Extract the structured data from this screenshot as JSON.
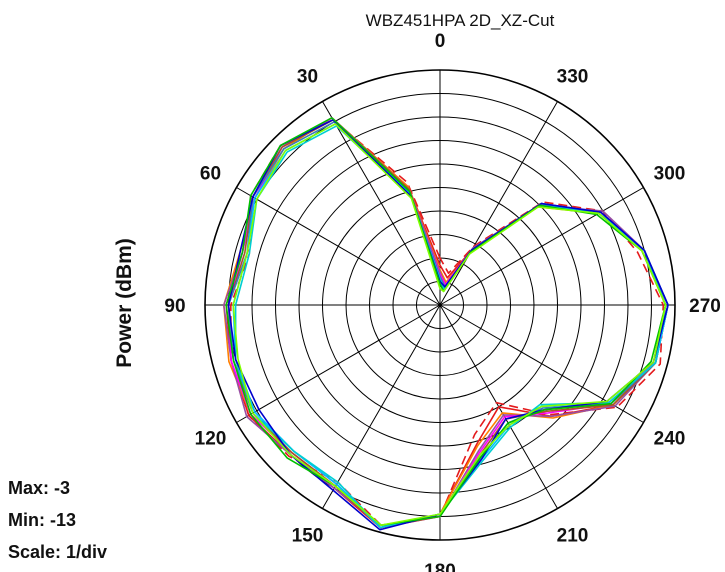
{
  "chart_data": {
    "type": "polar-line",
    "title": "WBZ451HPA 2D_XZ-Cut",
    "ylabel": "Power  (dBm)",
    "angle_direction": "counterclockwise",
    "zero_position": "top",
    "rlim": [
      -13,
      -3
    ],
    "r_ticks": [
      -13,
      -12,
      -11,
      -10,
      -9,
      -8,
      -7,
      -6,
      -5,
      -4,
      -3
    ],
    "angular_grid_step": 30,
    "angle_tick_labels": [
      "0",
      "30",
      "60",
      "90",
      "120",
      "150",
      "180",
      "210",
      "240",
      "270",
      "300",
      "330"
    ],
    "grid": true,
    "theta": [
      0,
      15,
      30,
      45,
      60,
      75,
      90,
      105,
      120,
      135,
      150,
      165,
      180,
      195,
      210,
      225,
      240,
      255,
      270,
      285,
      300,
      315,
      330,
      345
    ],
    "series": [
      {
        "color": "#e41a1c",
        "dashed": false,
        "values": [
          -11.3,
          -7.8,
          -3.9,
          -3.5,
          -3.8,
          -4.3,
          -3.9,
          -3.8,
          -3.6,
          -4.0,
          -4.0,
          -3.2,
          -4.1,
          -6.9,
          -8.0,
          -6.3,
          -4.5,
          -3.5,
          -3.4,
          -4.1,
          -5.1,
          -7.0,
          -10.3,
          -11.8
        ]
      },
      {
        "color": "#e41a1c",
        "dashed": true,
        "values": [
          -11.0,
          -7.6,
          -3.9,
          -3.4,
          -3.7,
          -4.6,
          -4.1,
          -3.8,
          -3.6,
          -3.9,
          -4.3,
          -3.3,
          -4.0,
          -7.3,
          -8.2,
          -6.4,
          -4.3,
          -3.3,
          -3.5,
          -4.3,
          -5.0,
          -6.8,
          -10.1,
          -11.6
        ]
      },
      {
        "color": "#ff7f00",
        "dashed": false,
        "values": [
          -11.5,
          -7.8,
          -3.8,
          -3.6,
          -3.9,
          -4.2,
          -3.8,
          -3.7,
          -3.7,
          -4.1,
          -4.1,
          -3.2,
          -4.1,
          -6.8,
          -7.7,
          -6.2,
          -4.5,
          -3.6,
          -3.4,
          -4.0,
          -5.2,
          -7.1,
          -10.4,
          -12.0
        ]
      },
      {
        "color": "#984ea3",
        "dashed": false,
        "values": [
          -11.6,
          -7.9,
          -3.8,
          -3.5,
          -3.8,
          -4.3,
          -3.8,
          -3.8,
          -3.5,
          -4.0,
          -4.0,
          -3.3,
          -4.0,
          -6.6,
          -7.6,
          -6.3,
          -4.4,
          -3.5,
          -3.3,
          -4.0,
          -5.0,
          -7.0,
          -10.2,
          -12.1
        ]
      },
      {
        "color": "#ff00ff",
        "dashed": false,
        "values": [
          -11.7,
          -8.0,
          -3.8,
          -3.5,
          -3.9,
          -4.3,
          -4.0,
          -3.8,
          -3.7,
          -4.1,
          -4.1,
          -3.2,
          -4.0,
          -6.5,
          -7.5,
          -6.5,
          -4.6,
          -3.6,
          -3.3,
          -4.0,
          -5.1,
          -6.9,
          -10.3,
          -12.1
        ]
      },
      {
        "color": "#a65628",
        "dashed": false,
        "values": [
          -11.8,
          -7.9,
          -3.9,
          -3.5,
          -3.8,
          -4.4,
          -4.0,
          -3.9,
          -3.8,
          -4.1,
          -4.1,
          -3.2,
          -4.0,
          -6.4,
          -7.4,
          -6.6,
          -4.5,
          -3.5,
          -3.3,
          -4.0,
          -5.2,
          -6.9,
          -10.3,
          -12.2
        ]
      },
      {
        "color": "#377eb8",
        "dashed": false,
        "values": [
          -11.8,
          -8.1,
          -4.0,
          -3.6,
          -3.8,
          -4.5,
          -4.0,
          -3.9,
          -3.9,
          -4.2,
          -4.2,
          -3.2,
          -4.1,
          -6.3,
          -7.2,
          -6.8,
          -4.6,
          -3.5,
          -3.3,
          -4.0,
          -5.1,
          -6.9,
          -10.3,
          -12.2
        ]
      },
      {
        "color": "#00bfff",
        "dashed": false,
        "values": [
          -11.9,
          -8.1,
          -4.1,
          -3.7,
          -3.9,
          -4.5,
          -4.2,
          -4.0,
          -3.9,
          -4.2,
          -4.2,
          -3.2,
          -4.1,
          -6.2,
          -7.1,
          -6.9,
          -4.7,
          -3.5,
          -3.3,
          -4.0,
          -5.2,
          -6.9,
          -10.4,
          -12.3
        ]
      },
      {
        "color": "#00ced1",
        "dashed": false,
        "values": [
          -12.0,
          -8.2,
          -4.2,
          -3.8,
          -4.0,
          -4.6,
          -4.3,
          -4.0,
          -3.8,
          -4.2,
          -4.3,
          -3.2,
          -4.1,
          -6.1,
          -7.0,
          -7.0,
          -4.7,
          -3.5,
          -3.4,
          -4.0,
          -5.2,
          -7.0,
          -10.4,
          -12.3
        ]
      },
      {
        "color": "#0000cd",
        "dashed": false,
        "values": [
          -12.0,
          -8.2,
          -3.9,
          -3.4,
          -3.8,
          -4.2,
          -4.0,
          -4.0,
          -4.1,
          -4.0,
          -3.9,
          -3.1,
          -4.1,
          -6.2,
          -7.4,
          -6.7,
          -4.8,
          -3.6,
          -3.3,
          -4.0,
          -5.1,
          -6.9,
          -10.3,
          -12.2
        ]
      },
      {
        "color": "#00c000",
        "dashed": false,
        "values": [
          -12.1,
          -8.0,
          -3.8,
          -3.4,
          -3.7,
          -4.3,
          -3.9,
          -3.9,
          -3.7,
          -3.8,
          -4.1,
          -3.3,
          -4.0,
          -6.3,
          -7.2,
          -6.7,
          -4.6,
          -3.7,
          -3.4,
          -4.1,
          -5.3,
          -7.0,
          -10.4,
          -12.4
        ]
      },
      {
        "color": "#80ff00",
        "dashed": false,
        "values": [
          -12.3,
          -8.3,
          -4.1,
          -3.7,
          -4.0,
          -4.5,
          -4.2,
          -4.1,
          -3.8,
          -4.0,
          -4.1,
          -3.3,
          -4.1,
          -6.4,
          -7.1,
          -6.9,
          -4.8,
          -3.6,
          -3.4,
          -4.1,
          -5.2,
          -7.1,
          -10.5,
          -12.4
        ]
      }
    ]
  },
  "info": {
    "max": "Max: -3",
    "min": "Min: -13",
    "scale": "Scale: 1/div"
  }
}
